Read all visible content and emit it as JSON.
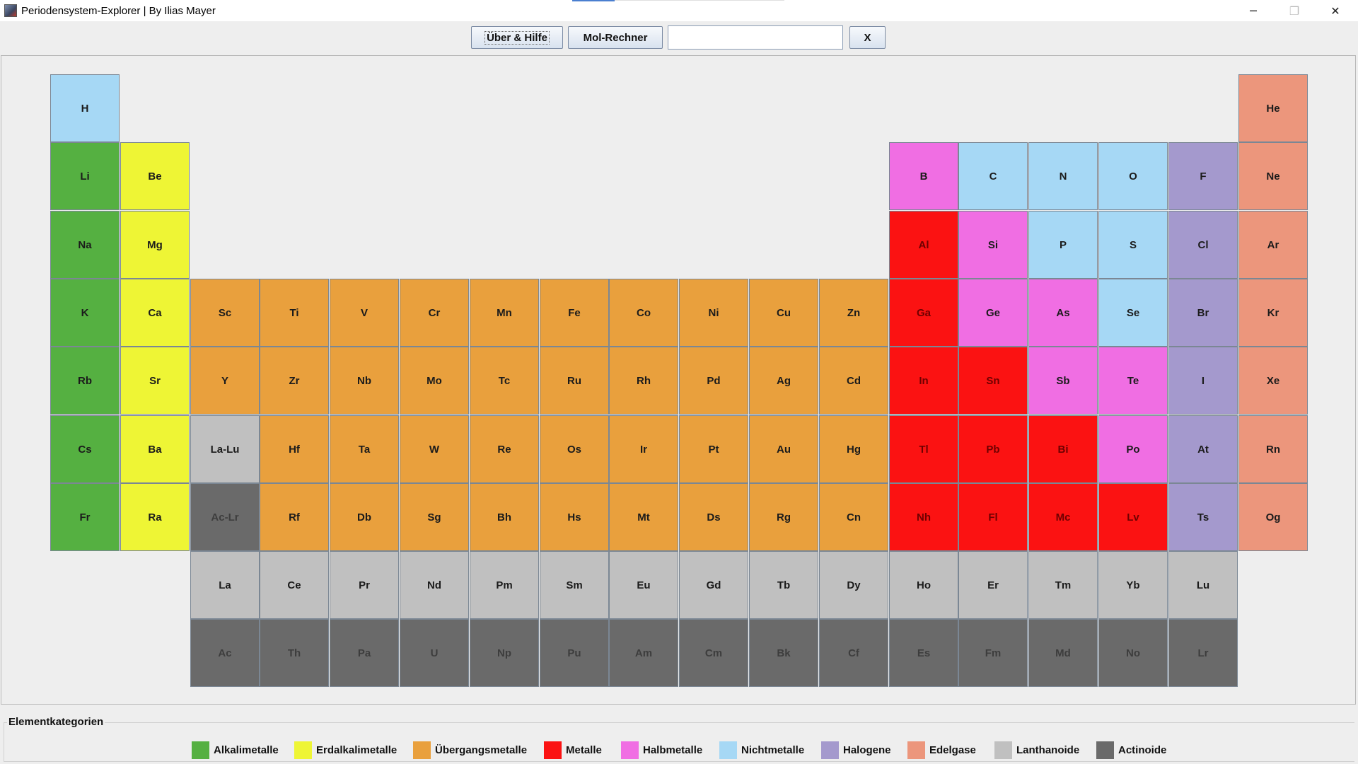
{
  "window": {
    "title": "Periodensystem-Explorer | By Ilias Mayer",
    "minimize": "─",
    "maximize": "❐",
    "close": "✕"
  },
  "toolbar": {
    "help_label": "Über & Hilfe",
    "mol_label": "Mol-Rechner",
    "search_value": "",
    "clear_label": "X"
  },
  "colors": {
    "alkali": "#55b041",
    "earth": "#eef535",
    "transition": "#e9a03d",
    "metal": "#fb1212",
    "metalloid": "#f06ee3",
    "nonmetal": "#a6d8f5",
    "halogen": "#a499cd",
    "noble": "#ec967c",
    "lanthanide": "#c0c0c0",
    "actinide": "#6a6a6a"
  },
  "elements": [
    {
      "symbol": "H",
      "cat": "nonmetal",
      "row": 0,
      "col": 0
    },
    {
      "symbol": "He",
      "cat": "noble",
      "row": 0,
      "col": 17
    },
    {
      "symbol": "Li",
      "cat": "alkali",
      "row": 1,
      "col": 0
    },
    {
      "symbol": "Be",
      "cat": "earth",
      "row": 1,
      "col": 1
    },
    {
      "symbol": "B",
      "cat": "metalloid",
      "row": 1,
      "col": 12
    },
    {
      "symbol": "C",
      "cat": "nonmetal",
      "row": 1,
      "col": 13
    },
    {
      "symbol": "N",
      "cat": "nonmetal",
      "row": 1,
      "col": 14
    },
    {
      "symbol": "O",
      "cat": "nonmetal",
      "row": 1,
      "col": 15
    },
    {
      "symbol": "F",
      "cat": "halogen",
      "row": 1,
      "col": 16
    },
    {
      "symbol": "Ne",
      "cat": "noble",
      "row": 1,
      "col": 17
    },
    {
      "symbol": "Na",
      "cat": "alkali",
      "row": 2,
      "col": 0
    },
    {
      "symbol": "Mg",
      "cat": "earth",
      "row": 2,
      "col": 1
    },
    {
      "symbol": "Al",
      "cat": "metal",
      "row": 2,
      "col": 12
    },
    {
      "symbol": "Si",
      "cat": "metalloid",
      "row": 2,
      "col": 13
    },
    {
      "symbol": "P",
      "cat": "nonmetal",
      "row": 2,
      "col": 14
    },
    {
      "symbol": "S",
      "cat": "nonmetal",
      "row": 2,
      "col": 15
    },
    {
      "symbol": "Cl",
      "cat": "halogen",
      "row": 2,
      "col": 16
    },
    {
      "symbol": "Ar",
      "cat": "noble",
      "row": 2,
      "col": 17
    },
    {
      "symbol": "K",
      "cat": "alkali",
      "row": 3,
      "col": 0
    },
    {
      "symbol": "Ca",
      "cat": "earth",
      "row": 3,
      "col": 1
    },
    {
      "symbol": "Sc",
      "cat": "transition",
      "row": 3,
      "col": 2
    },
    {
      "symbol": "Ti",
      "cat": "transition",
      "row": 3,
      "col": 3
    },
    {
      "symbol": "V",
      "cat": "transition",
      "row": 3,
      "col": 4
    },
    {
      "symbol": "Cr",
      "cat": "transition",
      "row": 3,
      "col": 5
    },
    {
      "symbol": "Mn",
      "cat": "transition",
      "row": 3,
      "col": 6
    },
    {
      "symbol": "Fe",
      "cat": "transition",
      "row": 3,
      "col": 7
    },
    {
      "symbol": "Co",
      "cat": "transition",
      "row": 3,
      "col": 8
    },
    {
      "symbol": "Ni",
      "cat": "transition",
      "row": 3,
      "col": 9
    },
    {
      "symbol": "Cu",
      "cat": "transition",
      "row": 3,
      "col": 10
    },
    {
      "symbol": "Zn",
      "cat": "transition",
      "row": 3,
      "col": 11
    },
    {
      "symbol": "Ga",
      "cat": "metal",
      "row": 3,
      "col": 12
    },
    {
      "symbol": "Ge",
      "cat": "metalloid",
      "row": 3,
      "col": 13
    },
    {
      "symbol": "As",
      "cat": "metalloid",
      "row": 3,
      "col": 14
    },
    {
      "symbol": "Se",
      "cat": "nonmetal",
      "row": 3,
      "col": 15
    },
    {
      "symbol": "Br",
      "cat": "halogen",
      "row": 3,
      "col": 16
    },
    {
      "symbol": "Kr",
      "cat": "noble",
      "row": 3,
      "col": 17
    },
    {
      "symbol": "Rb",
      "cat": "alkali",
      "row": 4,
      "col": 0
    },
    {
      "symbol": "Sr",
      "cat": "earth",
      "row": 4,
      "col": 1
    },
    {
      "symbol": "Y",
      "cat": "transition",
      "row": 4,
      "col": 2
    },
    {
      "symbol": "Zr",
      "cat": "transition",
      "row": 4,
      "col": 3
    },
    {
      "symbol": "Nb",
      "cat": "transition",
      "row": 4,
      "col": 4
    },
    {
      "symbol": "Mo",
      "cat": "transition",
      "row": 4,
      "col": 5
    },
    {
      "symbol": "Tc",
      "cat": "transition",
      "row": 4,
      "col": 6
    },
    {
      "symbol": "Ru",
      "cat": "transition",
      "row": 4,
      "col": 7
    },
    {
      "symbol": "Rh",
      "cat": "transition",
      "row": 4,
      "col": 8
    },
    {
      "symbol": "Pd",
      "cat": "transition",
      "row": 4,
      "col": 9
    },
    {
      "symbol": "Ag",
      "cat": "transition",
      "row": 4,
      "col": 10
    },
    {
      "symbol": "Cd",
      "cat": "transition",
      "row": 4,
      "col": 11
    },
    {
      "symbol": "In",
      "cat": "metal",
      "row": 4,
      "col": 12
    },
    {
      "symbol": "Sn",
      "cat": "metal",
      "row": 4,
      "col": 13
    },
    {
      "symbol": "Sb",
      "cat": "metalloid",
      "row": 4,
      "col": 14
    },
    {
      "symbol": "Te",
      "cat": "metalloid",
      "row": 4,
      "col": 15
    },
    {
      "symbol": "I",
      "cat": "halogen",
      "row": 4,
      "col": 16
    },
    {
      "symbol": "Xe",
      "cat": "noble",
      "row": 4,
      "col": 17
    },
    {
      "symbol": "Cs",
      "cat": "alkali",
      "row": 5,
      "col": 0
    },
    {
      "symbol": "Ba",
      "cat": "earth",
      "row": 5,
      "col": 1
    },
    {
      "symbol": "La-Lu",
      "cat": "lanthanide",
      "row": 5,
      "col": 2
    },
    {
      "symbol": "Hf",
      "cat": "transition",
      "row": 5,
      "col": 3
    },
    {
      "symbol": "Ta",
      "cat": "transition",
      "row": 5,
      "col": 4
    },
    {
      "symbol": "W",
      "cat": "transition",
      "row": 5,
      "col": 5
    },
    {
      "symbol": "Re",
      "cat": "transition",
      "row": 5,
      "col": 6
    },
    {
      "symbol": "Os",
      "cat": "transition",
      "row": 5,
      "col": 7
    },
    {
      "symbol": "Ir",
      "cat": "transition",
      "row": 5,
      "col": 8
    },
    {
      "symbol": "Pt",
      "cat": "transition",
      "row": 5,
      "col": 9
    },
    {
      "symbol": "Au",
      "cat": "transition",
      "row": 5,
      "col": 10
    },
    {
      "symbol": "Hg",
      "cat": "transition",
      "row": 5,
      "col": 11
    },
    {
      "symbol": "Tl",
      "cat": "metal",
      "row": 5,
      "col": 12
    },
    {
      "symbol": "Pb",
      "cat": "metal",
      "row": 5,
      "col": 13
    },
    {
      "symbol": "Bi",
      "cat": "metal",
      "row": 5,
      "col": 14
    },
    {
      "symbol": "Po",
      "cat": "metalloid",
      "row": 5,
      "col": 15
    },
    {
      "symbol": "At",
      "cat": "halogen",
      "row": 5,
      "col": 16
    },
    {
      "symbol": "Rn",
      "cat": "noble",
      "row": 5,
      "col": 17
    },
    {
      "symbol": "Fr",
      "cat": "alkali",
      "row": 6,
      "col": 0
    },
    {
      "symbol": "Ra",
      "cat": "earth",
      "row": 6,
      "col": 1
    },
    {
      "symbol": "Ac-Lr",
      "cat": "actinide",
      "row": 6,
      "col": 2
    },
    {
      "symbol": "Rf",
      "cat": "transition",
      "row": 6,
      "col": 3
    },
    {
      "symbol": "Db",
      "cat": "transition",
      "row": 6,
      "col": 4
    },
    {
      "symbol": "Sg",
      "cat": "transition",
      "row": 6,
      "col": 5
    },
    {
      "symbol": "Bh",
      "cat": "transition",
      "row": 6,
      "col": 6
    },
    {
      "symbol": "Hs",
      "cat": "transition",
      "row": 6,
      "col": 7
    },
    {
      "symbol": "Mt",
      "cat": "transition",
      "row": 6,
      "col": 8
    },
    {
      "symbol": "Ds",
      "cat": "transition",
      "row": 6,
      "col": 9
    },
    {
      "symbol": "Rg",
      "cat": "transition",
      "row": 6,
      "col": 10
    },
    {
      "symbol": "Cn",
      "cat": "transition",
      "row": 6,
      "col": 11
    },
    {
      "symbol": "Nh",
      "cat": "metal",
      "row": 6,
      "col": 12
    },
    {
      "symbol": "Fl",
      "cat": "metal",
      "row": 6,
      "col": 13
    },
    {
      "symbol": "Mc",
      "cat": "metal",
      "row": 6,
      "col": 14
    },
    {
      "symbol": "Lv",
      "cat": "metal",
      "row": 6,
      "col": 15
    },
    {
      "symbol": "Ts",
      "cat": "halogen",
      "row": 6,
      "col": 16
    },
    {
      "symbol": "Og",
      "cat": "noble",
      "row": 6,
      "col": 17
    },
    {
      "symbol": "La",
      "cat": "lanthanide",
      "row": 7,
      "col": 2
    },
    {
      "symbol": "Ce",
      "cat": "lanthanide",
      "row": 7,
      "col": 3
    },
    {
      "symbol": "Pr",
      "cat": "lanthanide",
      "row": 7,
      "col": 4
    },
    {
      "symbol": "Nd",
      "cat": "lanthanide",
      "row": 7,
      "col": 5
    },
    {
      "symbol": "Pm",
      "cat": "lanthanide",
      "row": 7,
      "col": 6
    },
    {
      "symbol": "Sm",
      "cat": "lanthanide",
      "row": 7,
      "col": 7
    },
    {
      "symbol": "Eu",
      "cat": "lanthanide",
      "row": 7,
      "col": 8
    },
    {
      "symbol": "Gd",
      "cat": "lanthanide",
      "row": 7,
      "col": 9
    },
    {
      "symbol": "Tb",
      "cat": "lanthanide",
      "row": 7,
      "col": 10
    },
    {
      "symbol": "Dy",
      "cat": "lanthanide",
      "row": 7,
      "col": 11
    },
    {
      "symbol": "Ho",
      "cat": "lanthanide",
      "row": 7,
      "col": 12
    },
    {
      "symbol": "Er",
      "cat": "lanthanide",
      "row": 7,
      "col": 13
    },
    {
      "symbol": "Tm",
      "cat": "lanthanide",
      "row": 7,
      "col": 14
    },
    {
      "symbol": "Yb",
      "cat": "lanthanide",
      "row": 7,
      "col": 15
    },
    {
      "symbol": "Lu",
      "cat": "lanthanide",
      "row": 7,
      "col": 16
    },
    {
      "symbol": "Ac",
      "cat": "actinide",
      "row": 8,
      "col": 2
    },
    {
      "symbol": "Th",
      "cat": "actinide",
      "row": 8,
      "col": 3
    },
    {
      "symbol": "Pa",
      "cat": "actinide",
      "row": 8,
      "col": 4
    },
    {
      "symbol": "U",
      "cat": "actinide",
      "row": 8,
      "col": 5
    },
    {
      "symbol": "Np",
      "cat": "actinide",
      "row": 8,
      "col": 6
    },
    {
      "symbol": "Pu",
      "cat": "actinide",
      "row": 8,
      "col": 7
    },
    {
      "symbol": "Am",
      "cat": "actinide",
      "row": 8,
      "col": 8
    },
    {
      "symbol": "Cm",
      "cat": "actinide",
      "row": 8,
      "col": 9
    },
    {
      "symbol": "Bk",
      "cat": "actinide",
      "row": 8,
      "col": 10
    },
    {
      "symbol": "Cf",
      "cat": "actinide",
      "row": 8,
      "col": 11
    },
    {
      "symbol": "Es",
      "cat": "actinide",
      "row": 8,
      "col": 12
    },
    {
      "symbol": "Fm",
      "cat": "actinide",
      "row": 8,
      "col": 13
    },
    {
      "symbol": "Md",
      "cat": "actinide",
      "row": 8,
      "col": 14
    },
    {
      "symbol": "No",
      "cat": "actinide",
      "row": 8,
      "col": 15
    },
    {
      "symbol": "Lr",
      "cat": "actinide",
      "row": 8,
      "col": 16
    }
  ],
  "legend": {
    "title": "Elementkategorien",
    "items": [
      {
        "label": "Alkalimetalle",
        "cat": "alkali"
      },
      {
        "label": "Erdalkalimetalle",
        "cat": "earth"
      },
      {
        "label": "Übergangsmetalle",
        "cat": "transition"
      },
      {
        "label": "Metalle",
        "cat": "metal"
      },
      {
        "label": "Halbmetalle",
        "cat": "metalloid"
      },
      {
        "label": "Nichtmetalle",
        "cat": "nonmetal"
      },
      {
        "label": "Halogene",
        "cat": "halogen"
      },
      {
        "label": "Edelgase",
        "cat": "noble"
      },
      {
        "label": "Lanthanoide",
        "cat": "lanthanide"
      },
      {
        "label": "Actinoide",
        "cat": "actinide"
      }
    ]
  }
}
